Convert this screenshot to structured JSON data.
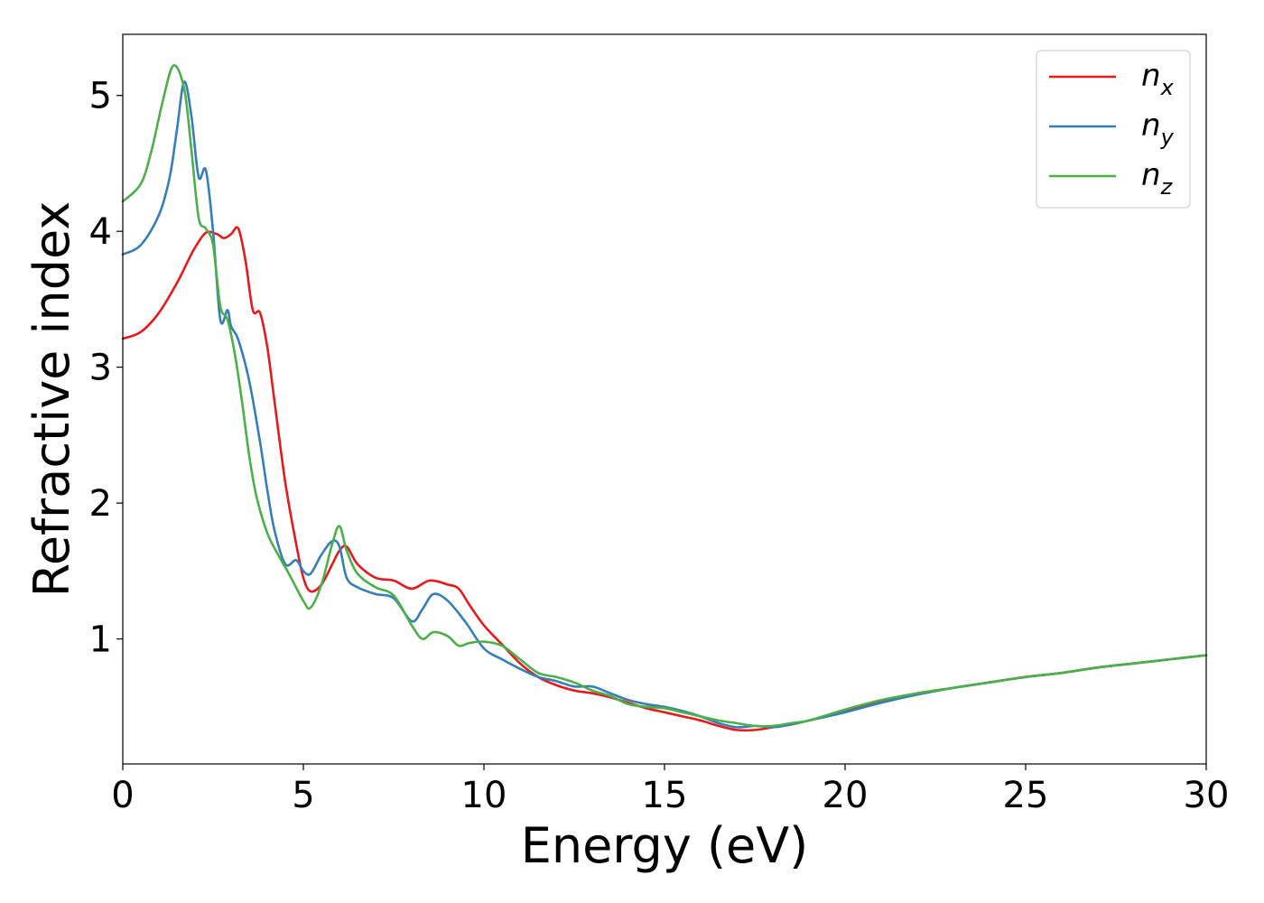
{
  "chart_data": {
    "type": "line",
    "title": "",
    "xlabel": "Energy (eV)",
    "ylabel": "Refractive index",
    "xlim": [
      0,
      30
    ],
    "ylim": [
      0.08,
      5.45
    ],
    "xticks": [
      0,
      5,
      10,
      15,
      20,
      25,
      30
    ],
    "xtick_labels": [
      "0",
      "5",
      "10",
      "15",
      "20",
      "25",
      "30"
    ],
    "yticks": [
      1,
      2,
      3,
      4,
      5
    ],
    "ytick_labels": [
      "1",
      "2",
      "3",
      "4",
      "5"
    ],
    "grid": false,
    "legend_position": "top-right",
    "series": [
      {
        "name": "n",
        "subscript": "x",
        "color": "#e41a1c",
        "x": [
          0,
          0.5,
          1.0,
          1.5,
          1.8,
          2.0,
          2.3,
          2.6,
          2.8,
          3.0,
          3.2,
          3.4,
          3.6,
          3.8,
          4.0,
          4.2,
          4.5,
          4.8,
          5.0,
          5.2,
          5.5,
          5.8,
          6.0,
          6.2,
          6.5,
          7.0,
          7.5,
          8.0,
          8.5,
          9.0,
          9.3,
          9.6,
          10.0,
          10.5,
          11.0,
          11.5,
          12.0,
          12.5,
          13.0,
          13.5,
          14.0,
          14.5,
          15.0,
          15.5,
          16.0,
          16.5,
          17.0,
          17.5,
          18.0,
          18.5,
          19.0,
          20.0,
          21.0,
          22.0,
          23.0,
          24.0,
          25.0,
          26.0,
          27.0,
          28.0,
          29.0,
          30.0
        ],
        "y": [
          3.21,
          3.26,
          3.4,
          3.62,
          3.78,
          3.88,
          3.99,
          3.98,
          3.95,
          3.98,
          4.02,
          3.78,
          3.42,
          3.4,
          3.15,
          2.75,
          2.15,
          1.7,
          1.45,
          1.35,
          1.4,
          1.55,
          1.65,
          1.68,
          1.55,
          1.45,
          1.43,
          1.37,
          1.43,
          1.4,
          1.37,
          1.25,
          1.1,
          0.96,
          0.82,
          0.72,
          0.66,
          0.62,
          0.6,
          0.57,
          0.53,
          0.49,
          0.46,
          0.43,
          0.4,
          0.36,
          0.33,
          0.33,
          0.35,
          0.37,
          0.4,
          0.47,
          0.54,
          0.6,
          0.64,
          0.68,
          0.72,
          0.75,
          0.79,
          0.82,
          0.85,
          0.88
        ]
      },
      {
        "name": "n",
        "subscript": "y",
        "color": "#377eb8",
        "x": [
          0,
          0.5,
          1.0,
          1.3,
          1.5,
          1.7,
          1.9,
          2.1,
          2.3,
          2.5,
          2.7,
          2.9,
          3.0,
          3.2,
          3.5,
          3.8,
          4.0,
          4.2,
          4.5,
          4.8,
          5.0,
          5.2,
          5.5,
          5.8,
          6.0,
          6.2,
          6.5,
          7.0,
          7.5,
          8.0,
          8.3,
          8.6,
          9.0,
          9.5,
          10.0,
          10.5,
          11.0,
          11.5,
          12.0,
          12.5,
          13.0,
          13.5,
          14.0,
          14.5,
          15.0,
          15.5,
          16.0,
          16.5,
          17.0,
          17.5,
          18.0,
          18.5,
          19.0,
          20.0,
          21.0,
          22.0,
          23.0,
          24.0,
          25.0,
          26.0,
          27.0,
          28.0,
          29.0,
          30.0
        ],
        "y": [
          3.83,
          3.9,
          4.12,
          4.4,
          4.75,
          5.1,
          4.85,
          4.4,
          4.45,
          4.0,
          3.35,
          3.42,
          3.3,
          3.2,
          2.9,
          2.45,
          2.1,
          1.8,
          1.55,
          1.58,
          1.5,
          1.48,
          1.62,
          1.72,
          1.68,
          1.45,
          1.38,
          1.33,
          1.3,
          1.13,
          1.22,
          1.33,
          1.28,
          1.12,
          0.93,
          0.85,
          0.78,
          0.72,
          0.69,
          0.65,
          0.65,
          0.6,
          0.55,
          0.52,
          0.5,
          0.47,
          0.43,
          0.38,
          0.35,
          0.36,
          0.35,
          0.37,
          0.4,
          0.46,
          0.53,
          0.59,
          0.64,
          0.68,
          0.72,
          0.75,
          0.79,
          0.82,
          0.85,
          0.88
        ]
      },
      {
        "name": "n",
        "subscript": "z",
        "color": "#4daf4a",
        "x": [
          0,
          0.5,
          0.8,
          1.1,
          1.4,
          1.7,
          1.9,
          2.1,
          2.3,
          2.5,
          2.7,
          2.9,
          3.1,
          3.3,
          3.5,
          3.7,
          4.0,
          4.3,
          4.6,
          5.0,
          5.2,
          5.5,
          5.8,
          6.0,
          6.2,
          6.5,
          7.0,
          7.5,
          8.0,
          8.3,
          8.6,
          9.0,
          9.3,
          9.6,
          10.0,
          10.5,
          11.0,
          11.5,
          12.0,
          12.5,
          13.0,
          13.5,
          14.0,
          14.5,
          15.0,
          15.5,
          16.0,
          16.5,
          17.0,
          17.5,
          18.0,
          18.5,
          19.0,
          20.0,
          21.0,
          22.0,
          23.0,
          24.0,
          25.0,
          26.0,
          27.0,
          28.0,
          29.0,
          30.0
        ],
        "y": [
          4.22,
          4.35,
          4.6,
          4.95,
          5.22,
          5.05,
          4.6,
          4.1,
          4.02,
          3.9,
          3.45,
          3.35,
          3.1,
          2.75,
          2.35,
          2.05,
          1.78,
          1.62,
          1.48,
          1.28,
          1.23,
          1.4,
          1.7,
          1.83,
          1.65,
          1.48,
          1.38,
          1.32,
          1.1,
          1.0,
          1.05,
          1.02,
          0.95,
          0.97,
          0.98,
          0.95,
          0.85,
          0.75,
          0.72,
          0.68,
          0.62,
          0.58,
          0.52,
          0.5,
          0.49,
          0.46,
          0.43,
          0.4,
          0.38,
          0.36,
          0.36,
          0.38,
          0.4,
          0.48,
          0.55,
          0.6,
          0.64,
          0.68,
          0.72,
          0.75,
          0.79,
          0.82,
          0.85,
          0.88
        ]
      }
    ]
  }
}
